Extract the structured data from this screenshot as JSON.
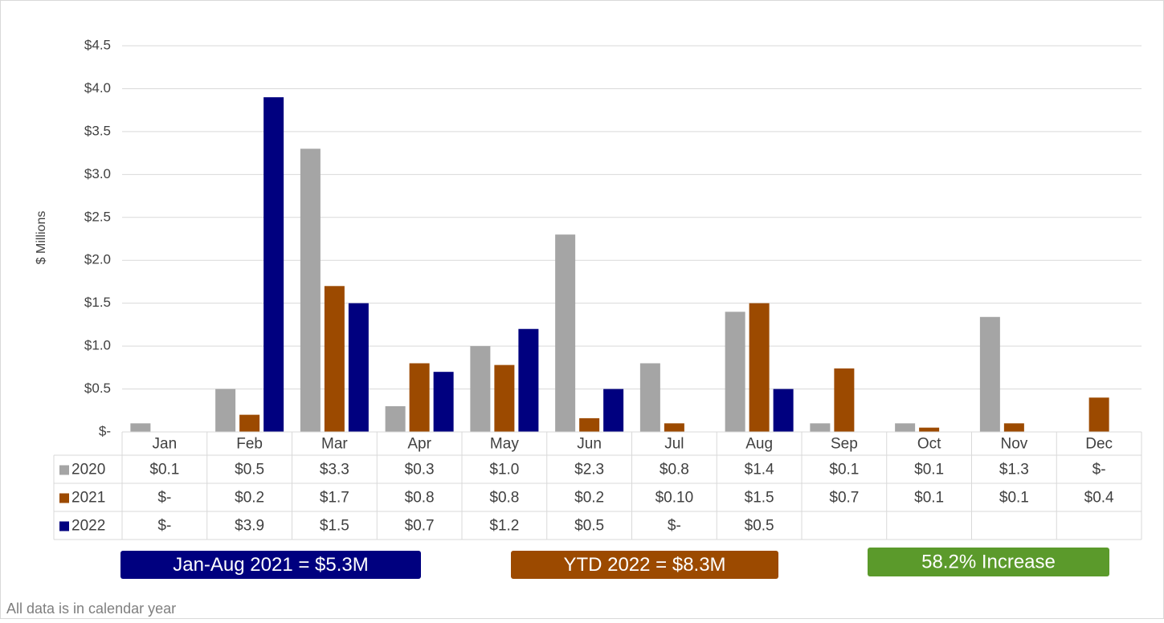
{
  "chart_data": {
    "type": "bar",
    "y_axis_label": "$ Millions",
    "categories": [
      "Jan",
      "Feb",
      "Mar",
      "Apr",
      "May",
      "Jun",
      "Jul",
      "Aug",
      "Sep",
      "Oct",
      "Nov",
      "Dec"
    ],
    "series": [
      {
        "name": "2020",
        "color": "#a5a5a5",
        "values": [
          0.1,
          0.5,
          3.3,
          0.3,
          1.0,
          2.3,
          0.8,
          1.4,
          0.1,
          0.1,
          1.34,
          0
        ],
        "value_labels": [
          "$0.1",
          "$0.5",
          "$3.3",
          "$0.3",
          "$1.0",
          "$2.3",
          "$0.8",
          "$1.4",
          "$0.1",
          "$0.1",
          "$1.3",
          "$-"
        ]
      },
      {
        "name": "2021",
        "color": "#9c4a00",
        "values": [
          0,
          0.2,
          1.7,
          0.8,
          0.78,
          0.16,
          0.1,
          1.5,
          0.74,
          0.05,
          0.1,
          0.4
        ],
        "value_labels": [
          "$-",
          "$0.2",
          "$1.7",
          "$0.8",
          "$0.8",
          "$0.2",
          "$0.10",
          "$1.5",
          "$0.7",
          "$0.1",
          "$0.1",
          "$0.4"
        ]
      },
      {
        "name": "2022",
        "color": "#00007f",
        "values": [
          0,
          3.9,
          1.5,
          0.7,
          1.2,
          0.5,
          0,
          0.5,
          null,
          null,
          null,
          null
        ],
        "value_labels": [
          "$-",
          "$3.9",
          "$1.5",
          "$0.7",
          "$1.2",
          "$0.5",
          "$-",
          "$0.5",
          null,
          null,
          null,
          null
        ]
      }
    ],
    "ylim": [
      0,
      4.5
    ],
    "yticks": [
      {
        "value": 0,
        "label": "$-"
      },
      {
        "value": 0.5,
        "label": "$0.5"
      },
      {
        "value": 1,
        "label": "$1.0"
      },
      {
        "value": 1.5,
        "label": "$1.5"
      },
      {
        "value": 2,
        "label": "$2.0"
      },
      {
        "value": 2.5,
        "label": "$2.5"
      },
      {
        "value": 3,
        "label": "$3.0"
      },
      {
        "value": 3.5,
        "label": "$3.5"
      },
      {
        "value": 4,
        "label": "$4.0"
      },
      {
        "value": 4.5,
        "label": "$4.5"
      }
    ],
    "grid": true,
    "annotations": [
      {
        "text": "Jan-Aug 2021 = $5.3M",
        "color": "#00007f"
      },
      {
        "text": "YTD 2022 = $8.3M",
        "color": "#9c4a00"
      },
      {
        "text": "58.2% Increase",
        "color": "#5b9a2b"
      }
    ],
    "footnote": "All data is in calendar year"
  }
}
